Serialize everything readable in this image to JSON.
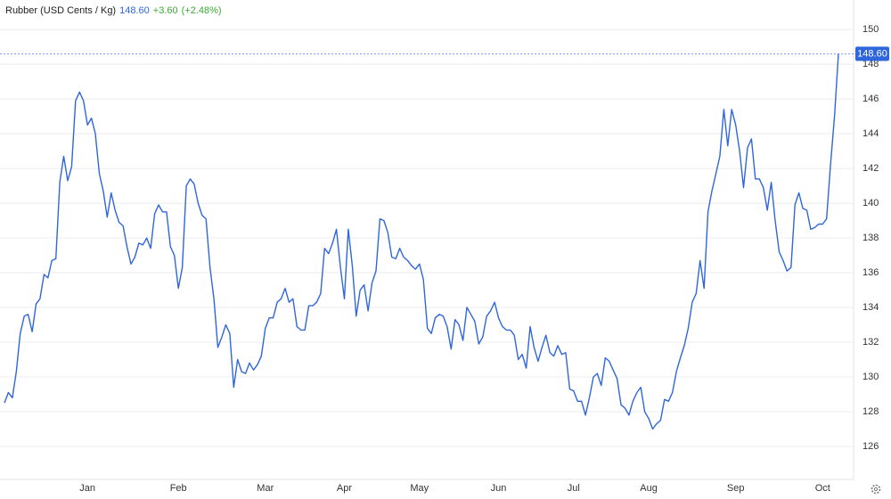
{
  "chart_data": {
    "type": "line",
    "title": "Rubber (USD Cents / Kg)",
    "price": {
      "value": 148.6,
      "label": "148.60"
    },
    "change": {
      "value": 3.6,
      "label": "+3.60"
    },
    "change_pct": {
      "value": 2.48,
      "label": "(+2.48%)"
    },
    "color": "#2f66dc",
    "up_color": "#3aaa35",
    "grid": true,
    "ylim": [
      124.1,
      151.7
    ],
    "yticks": [
      126,
      128,
      130,
      132,
      134,
      136,
      138,
      140,
      142,
      144,
      146,
      148,
      150
    ],
    "categories": [
      null,
      null,
      null,
      null,
      null,
      null,
      null,
      null,
      null,
      null,
      null,
      null,
      null,
      null,
      null,
      null,
      null,
      null,
      null,
      null,
      null,
      "Jan",
      null,
      null,
      null,
      null,
      null,
      null,
      null,
      null,
      null,
      null,
      null,
      null,
      null,
      null,
      null,
      null,
      null,
      null,
      null,
      null,
      null,
      null,
      "Feb",
      null,
      null,
      null,
      null,
      null,
      null,
      null,
      null,
      null,
      null,
      null,
      null,
      null,
      null,
      null,
      null,
      null,
      null,
      null,
      null,
      null,
      "Mar",
      null,
      null,
      null,
      null,
      null,
      null,
      null,
      null,
      null,
      null,
      null,
      null,
      null,
      null,
      null,
      null,
      null,
      null,
      null,
      "Apr",
      null,
      null,
      null,
      null,
      null,
      null,
      null,
      null,
      null,
      null,
      null,
      null,
      null,
      null,
      null,
      null,
      null,
      null,
      "May",
      null,
      null,
      null,
      null,
      null,
      null,
      null,
      null,
      null,
      null,
      null,
      null,
      null,
      null,
      null,
      null,
      null,
      null,
      null,
      "Jun",
      null,
      null,
      null,
      null,
      null,
      null,
      null,
      null,
      null,
      null,
      null,
      null,
      null,
      null,
      null,
      null,
      null,
      null,
      "Jul",
      null,
      null,
      null,
      null,
      null,
      null,
      null,
      null,
      null,
      null,
      null,
      null,
      null,
      null,
      null,
      null,
      null,
      null,
      "Aug",
      null,
      null,
      null,
      null,
      null,
      null,
      null,
      null,
      null,
      null,
      null,
      null,
      null,
      null,
      null,
      null,
      null,
      null,
      null,
      null,
      null,
      "Sep",
      null,
      null,
      null,
      null,
      null,
      null,
      null,
      null,
      null,
      null,
      null,
      null,
      null,
      null,
      null,
      null,
      null,
      null,
      null,
      null,
      null,
      "Oct",
      null,
      null,
      null,
      null
    ],
    "values": [
      128.5,
      129.1,
      128.8,
      130.3,
      132.5,
      133.5,
      133.6,
      132.6,
      134.2,
      134.5,
      135.9,
      135.7,
      136.7,
      136.8,
      141.2,
      142.7,
      141.3,
      142.1,
      145.9,
      146.4,
      145.9,
      144.5,
      144.9,
      144.0,
      141.7,
      140.7,
      139.2,
      140.6,
      139.6,
      138.9,
      138.7,
      137.5,
      136.5,
      136.9,
      137.7,
      137.6,
      138.0,
      137.4,
      139.4,
      139.9,
      139.5,
      139.5,
      137.5,
      137.0,
      135.1,
      136.3,
      141.0,
      141.4,
      141.1,
      140.0,
      139.3,
      139.1,
      136.3,
      134.5,
      131.7,
      132.3,
      133.0,
      132.5,
      129.4,
      131.0,
      130.3,
      130.2,
      130.8,
      130.4,
      130.7,
      131.2,
      132.8,
      133.4,
      133.4,
      134.3,
      134.5,
      135.1,
      134.3,
      134.5,
      132.9,
      132.7,
      132.7,
      134.1,
      134.1,
      134.3,
      134.8,
      137.4,
      137.1,
      137.7,
      138.5,
      136.3,
      134.5,
      138.5,
      136.4,
      133.5,
      135.0,
      135.3,
      133.8,
      135.4,
      136.1,
      139.1,
      139.0,
      138.3,
      136.9,
      136.8,
      137.4,
      136.9,
      136.7,
      136.4,
      136.2,
      136.5,
      135.6,
      132.8,
      132.5,
      133.4,
      133.6,
      133.5,
      132.9,
      131.6,
      133.3,
      133.0,
      132.1,
      134.0,
      133.6,
      133.2,
      131.9,
      132.3,
      133.5,
      133.8,
      134.3,
      133.4,
      132.9,
      132.7,
      132.7,
      132.4,
      131.0,
      131.3,
      130.5,
      132.9,
      131.7,
      130.9,
      131.7,
      132.4,
      131.4,
      131.2,
      131.8,
      131.3,
      131.4,
      129.3,
      129.2,
      128.6,
      128.6,
      127.8,
      128.8,
      130.0,
      130.2,
      129.5,
      131.1,
      130.9,
      130.4,
      129.9,
      128.4,
      128.2,
      127.8,
      128.6,
      129.1,
      129.4,
      128.0,
      127.6,
      127.0,
      127.3,
      127.5,
      128.7,
      128.6,
      129.1,
      130.3,
      131.1,
      131.8,
      132.8,
      134.3,
      134.8,
      136.7,
      135.1,
      139.5,
      140.7,
      141.7,
      142.7,
      145.4,
      143.3,
      145.4,
      144.5,
      143.0,
      140.9,
      143.2,
      143.7,
      141.4,
      141.4,
      140.9,
      139.6,
      141.2,
      139.0,
      137.2,
      136.7,
      136.1,
      136.3,
      139.9,
      140.6,
      139.7,
      139.6,
      138.5,
      138.6,
      138.8,
      138.8,
      139.1,
      142.2,
      145.0,
      148.6
    ]
  }
}
